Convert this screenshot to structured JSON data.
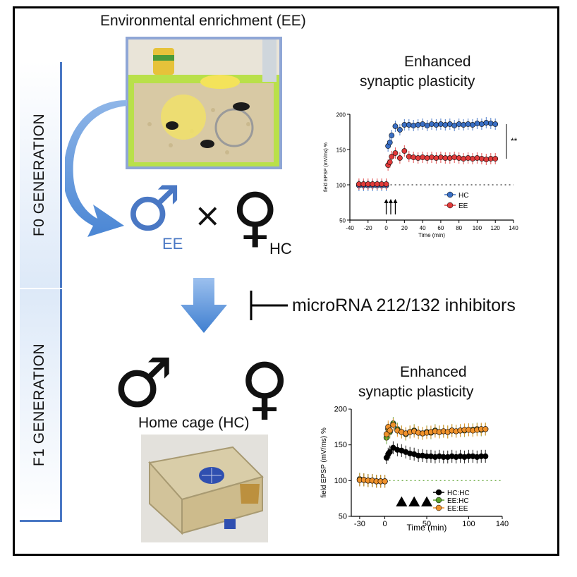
{
  "titles": {
    "ee_photo": "Environmental enrichment (EE)",
    "hc_photo": "Home cage (HC)",
    "plot1_line1": "Enhanced",
    "plot1_line2": "synaptic plasticity",
    "plot2_line1": "Enhanced",
    "plot2_line2": "synaptic plasticity"
  },
  "generations": {
    "f0": "F0 GENERATION",
    "f1": "F1 GENERATION"
  },
  "cross": {
    "male_label": "EE",
    "female_label": "HC",
    "times": "×",
    "male_symbol": "♂",
    "female_symbol": "♀"
  },
  "inhibitor": "microRNA 212/132 inhibitors",
  "colors": {
    "blue_accent": "#4a78c4",
    "hc_series": "#000000",
    "ee_series_f0": "#e03a3a",
    "ee_series_f0_mean": "#3a6fc4",
    "eehc_series": "#5aa02c",
    "eeee_series": "#f0922b",
    "bar_fill": "#dde9f8"
  },
  "chart_data": [
    {
      "type": "scatter",
      "xlabel": "Time (min)",
      "ylabel": "field EPSP (mV/ms) %",
      "xlim": [
        -40,
        140
      ],
      "ylim": [
        50,
        200
      ],
      "xticks": [
        -40,
        -20,
        0,
        20,
        40,
        60,
        80,
        100,
        120,
        140
      ],
      "yticks": [
        50,
        100,
        150,
        200
      ],
      "significance": "**",
      "series": [
        {
          "name": "HC",
          "color": "#3a6fc4",
          "x": [
            -30,
            -25,
            -20,
            -15,
            -10,
            -5,
            0,
            2,
            4,
            6,
            10,
            15,
            20,
            25,
            30,
            35,
            40,
            45,
            50,
            55,
            60,
            65,
            70,
            75,
            80,
            85,
            90,
            95,
            100,
            105,
            110,
            115,
            120
          ],
          "y": [
            99,
            99,
            99,
            99,
            99,
            99,
            99,
            155,
            160,
            170,
            183,
            178,
            185,
            185,
            184,
            185,
            186,
            184,
            186,
            185,
            186,
            185,
            186,
            184,
            186,
            185,
            186,
            185,
            187,
            186,
            188,
            187,
            186
          ]
        },
        {
          "name": "EE",
          "color": "#e03a3a",
          "x": [
            -30,
            -25,
            -20,
            -15,
            -10,
            -5,
            0,
            2,
            4,
            6,
            10,
            15,
            20,
            25,
            30,
            35,
            40,
            45,
            50,
            55,
            60,
            65,
            70,
            75,
            80,
            85,
            90,
            95,
            100,
            105,
            110,
            115,
            120
          ],
          "y": [
            101,
            101,
            101,
            101,
            101,
            101,
            101,
            128,
            132,
            140,
            145,
            138,
            148,
            140,
            139,
            138,
            139,
            138,
            139,
            138,
            139,
            138,
            138,
            139,
            138,
            137,
            138,
            137,
            138,
            137,
            136,
            137,
            137
          ]
        }
      ]
    },
    {
      "type": "scatter",
      "xlabel": "Time (min)",
      "ylabel": "field EPSP (mV/ms) %",
      "xlim": [
        -40,
        140
      ],
      "ylim": [
        50,
        200
      ],
      "xticks": [
        -30,
        0,
        50,
        100,
        140
      ],
      "yticks": [
        50,
        100,
        150,
        200
      ],
      "series": [
        {
          "name": "HC:HC",
          "color": "#000000",
          "x": [
            -30,
            -25,
            -20,
            -15,
            -10,
            -5,
            0,
            2,
            4,
            6,
            10,
            15,
            20,
            25,
            30,
            35,
            40,
            45,
            50,
            55,
            60,
            65,
            70,
            75,
            80,
            85,
            90,
            95,
            100,
            105,
            110,
            115,
            120
          ],
          "y": [
            101,
            101,
            100,
            100,
            99,
            99,
            99,
            132,
            137,
            140,
            146,
            143,
            142,
            140,
            138,
            137,
            135,
            135,
            134,
            134,
            133,
            134,
            133,
            133,
            134,
            133,
            134,
            133,
            134,
            134,
            133,
            134,
            134
          ]
        },
        {
          "name": "EE:HC",
          "color": "#5aa02c",
          "x": [
            -30,
            -25,
            -20,
            -15,
            -10,
            -5,
            0,
            2,
            4,
            6,
            10,
            15,
            20,
            25,
            30,
            35,
            40,
            45,
            50,
            55,
            60,
            65,
            70,
            75,
            80,
            85,
            90,
            95,
            100,
            105,
            110,
            115,
            120
          ],
          "y": [
            102,
            101,
            100,
            100,
            99,
            99,
            99,
            160,
            172,
            168,
            180,
            172,
            168,
            165,
            168,
            170,
            167,
            166,
            168,
            167,
            170,
            168,
            169,
            168,
            170,
            169,
            170,
            170,
            171,
            171,
            172,
            171,
            172
          ]
        },
        {
          "name": "EE:EE",
          "color": "#f0922b",
          "x": [
            -30,
            -25,
            -20,
            -15,
            -10,
            -5,
            0,
            2,
            4,
            6,
            10,
            15,
            20,
            25,
            30,
            35,
            40,
            45,
            50,
            55,
            60,
            65,
            70,
            75,
            80,
            85,
            90,
            95,
            100,
            105,
            110,
            115,
            120
          ],
          "y": [
            101,
            101,
            100,
            100,
            99,
            99,
            99,
            165,
            175,
            170,
            178,
            170,
            168,
            166,
            168,
            169,
            167,
            166,
            167,
            168,
            169,
            168,
            169,
            168,
            170,
            169,
            170,
            171,
            171,
            170,
            171,
            172,
            172
          ]
        }
      ]
    }
  ]
}
